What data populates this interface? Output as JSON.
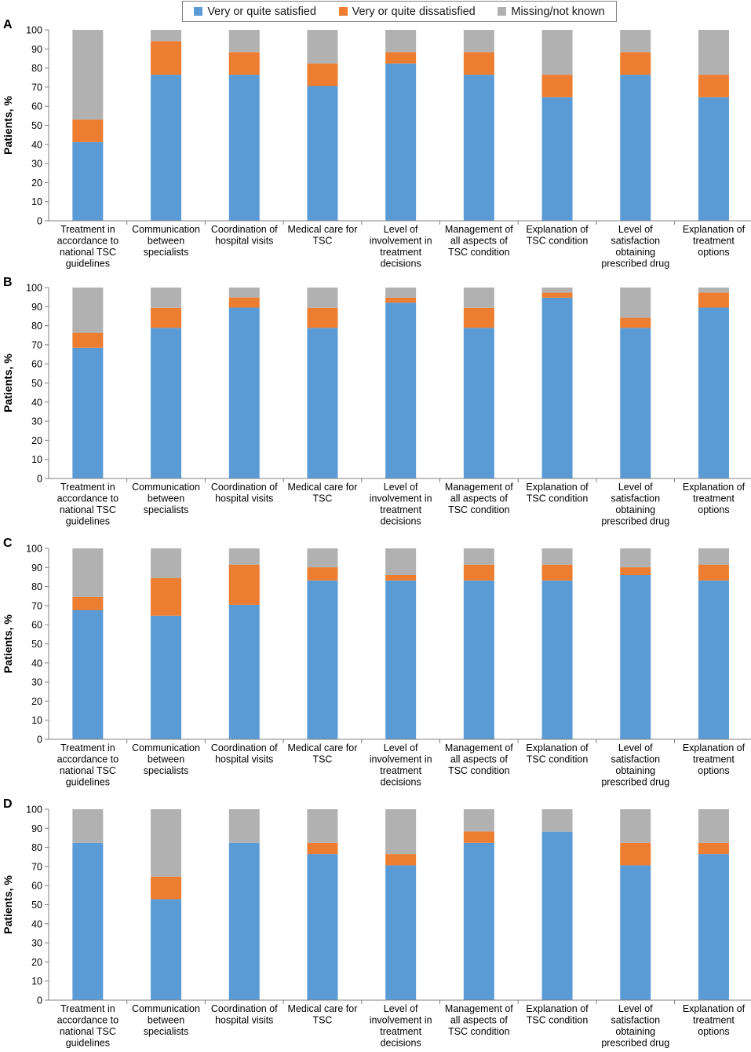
{
  "chart_data": [
    {
      "panel": "A",
      "type": "bar",
      "stacked": true,
      "ylabel": "Patients, %",
      "ylim": [
        0,
        100
      ],
      "yticks": [
        0,
        10,
        20,
        30,
        40,
        50,
        60,
        70,
        80,
        90,
        100
      ],
      "categories": [
        [
          "Treatment in",
          "accordance to",
          "national TSC",
          "guidelines"
        ],
        [
          "Communication",
          "between",
          "specialists"
        ],
        [
          "Coordination of",
          "hospital visits"
        ],
        [
          "Medical care for",
          "TSC"
        ],
        [
          "Level of",
          "involvement in",
          "treatment",
          "decisions"
        ],
        [
          "Management of",
          "all aspects of",
          "TSC condition"
        ],
        [
          "Explanation of",
          "TSC condition"
        ],
        [
          "Level of",
          "satisfaction",
          "obtaining",
          "prescribed drug"
        ],
        [
          "Explanation of",
          "treatment",
          "options"
        ]
      ],
      "series": [
        {
          "name": "Very or quite satisfied",
          "values": [
            41.2,
            76.5,
            76.5,
            70.6,
            82.4,
            76.5,
            64.7,
            76.5,
            64.7
          ]
        },
        {
          "name": "Very or quite dissatisfied",
          "values": [
            11.8,
            17.6,
            11.8,
            11.8,
            5.9,
            11.8,
            11.8,
            11.8,
            11.8
          ]
        },
        {
          "name": "Missing/not known",
          "values": [
            47.0,
            5.9,
            11.7,
            17.6,
            11.7,
            11.7,
            23.5,
            11.7,
            23.5
          ]
        }
      ]
    },
    {
      "panel": "B",
      "type": "bar",
      "stacked": true,
      "ylabel": "Patients, %",
      "ylim": [
        0,
        100
      ],
      "yticks": [
        0,
        10,
        20,
        30,
        40,
        50,
        60,
        70,
        80,
        90,
        100
      ],
      "categories": [
        [
          "Treatment in",
          "accordance to",
          "national TSC",
          "guidelines"
        ],
        [
          "Communication",
          "between",
          "specialists"
        ],
        [
          "Coordination of",
          "hospital visits"
        ],
        [
          "Medical care for",
          "TSC"
        ],
        [
          "Level of",
          "involvement in",
          "treatment",
          "decisions"
        ],
        [
          "Management of",
          "all aspects of",
          "TSC condition"
        ],
        [
          "Explanation of",
          "TSC condition"
        ],
        [
          "Level of",
          "satisfaction",
          "obtaining",
          "prescribed drug"
        ],
        [
          "Explanation of",
          "treatment",
          "options"
        ]
      ],
      "series": [
        {
          "name": "Very or quite satisfied",
          "values": [
            68.4,
            78.9,
            89.5,
            78.9,
            92.1,
            78.9,
            94.7,
            78.9,
            89.5
          ]
        },
        {
          "name": "Very or quite dissatisfied",
          "values": [
            7.9,
            10.5,
            5.3,
            10.5,
            2.6,
            10.5,
            2.6,
            5.3,
            7.9
          ]
        },
        {
          "name": "Missing/not known",
          "values": [
            23.7,
            10.6,
            5.2,
            10.6,
            5.3,
            10.6,
            2.7,
            15.8,
            2.6
          ]
        }
      ]
    },
    {
      "panel": "C",
      "type": "bar",
      "stacked": true,
      "ylabel": "Patients, %",
      "ylim": [
        0,
        100
      ],
      "yticks": [
        0,
        10,
        20,
        30,
        40,
        50,
        60,
        70,
        80,
        90,
        100
      ],
      "categories": [
        [
          "Treatment in",
          "accordance to",
          "national TSC",
          "guidelines"
        ],
        [
          "Communication",
          "between",
          "specialists"
        ],
        [
          "Coordination of",
          "hospital visits"
        ],
        [
          "Medical care for",
          "TSC"
        ],
        [
          "Level of",
          "involvement in",
          "treatment",
          "decisions"
        ],
        [
          "Management of",
          "all aspects of",
          "TSC condition"
        ],
        [
          "Explanation of",
          "TSC condition"
        ],
        [
          "Level of",
          "satisfaction",
          "obtaining",
          "prescribed drug"
        ],
        [
          "Explanation of",
          "treatment",
          "options"
        ]
      ],
      "series": [
        {
          "name": "Very or quite satisfied",
          "values": [
            67.7,
            64.7,
            70.4,
            83.2,
            83.2,
            83.2,
            83.2,
            86.0,
            83.2
          ]
        },
        {
          "name": "Very or quite dissatisfied",
          "values": [
            6.8,
            19.8,
            21.1,
            6.9,
            2.8,
            8.3,
            8.3,
            4.1,
            8.3
          ]
        },
        {
          "name": "Missing/not known",
          "values": [
            25.5,
            15.5,
            8.5,
            9.9,
            14.0,
            8.5,
            8.5,
            9.9,
            8.5
          ]
        }
      ]
    },
    {
      "panel": "D",
      "type": "bar",
      "stacked": true,
      "ylabel": "Patients, %",
      "ylim": [
        0,
        100
      ],
      "yticks": [
        0,
        10,
        20,
        30,
        40,
        50,
        60,
        70,
        80,
        90,
        100
      ],
      "categories": [
        [
          "Treatment in",
          "accordance to",
          "national TSC",
          "guidelines"
        ],
        [
          "Communication",
          "between",
          "specialists"
        ],
        [
          "Coordination of",
          "hospital visits"
        ],
        [
          "Medical care for",
          "TSC"
        ],
        [
          "Level of",
          "involvement in",
          "treatment",
          "decisions"
        ],
        [
          "Management of",
          "all aspects of",
          "TSC condition"
        ],
        [
          "Explanation of",
          "TSC condition"
        ],
        [
          "Level of",
          "satisfaction",
          "obtaining",
          "prescribed drug"
        ],
        [
          "Explanation of",
          "treatment",
          "options"
        ]
      ],
      "series": [
        {
          "name": "Very or quite satisfied",
          "values": [
            82.4,
            52.9,
            82.4,
            76.5,
            70.6,
            82.4,
            88.2,
            70.6,
            76.5
          ]
        },
        {
          "name": "Very or quite dissatisfied",
          "values": [
            0,
            11.8,
            0,
            5.9,
            5.9,
            5.9,
            0,
            11.8,
            5.9
          ]
        },
        {
          "name": "Missing/not known",
          "values": [
            17.6,
            35.3,
            17.6,
            17.6,
            23.5,
            11.7,
            11.8,
            17.6,
            17.6
          ]
        }
      ]
    }
  ],
  "legend": [
    {
      "label": "Very or quite satisfied",
      "color": "#5b9bd5"
    },
    {
      "label": "Very or quite dissatisfied",
      "color": "#ed7d31"
    },
    {
      "label": "Missing/not known",
      "color": "#b1b1b1"
    }
  ]
}
